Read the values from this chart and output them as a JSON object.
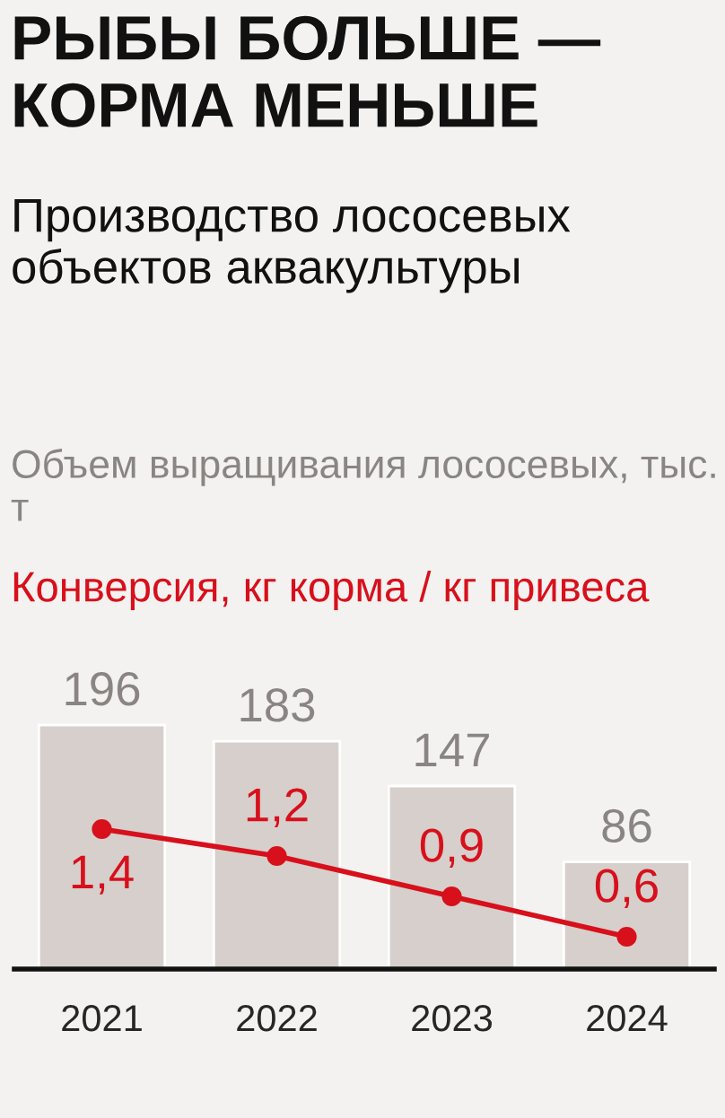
{
  "chart_data": {
    "type": "bar",
    "title": "РЫБЫ БОЛЬШЕ — КОРМА МЕНЬШЕ",
    "subtitle": "Производство лососевых объектов аквакультуры",
    "annotations": [
      "Объем выращивания лососевых, тыс. т"
    ],
    "categories": [
      "2021",
      "2022",
      "2023",
      "2024"
    ],
    "series": [
      {
        "color": "#d6cfcb",
        "values": [
          196,
          183,
          147,
          86
        ]
      },
      {
        "name": "Конверсия, кг корма / кг привеса",
        "type": "line",
        "axis": "y2",
        "color": "#d7101c",
        "values": [
          1.4,
          1.2,
          0.9,
          0.6
        ],
        "value_labels": [
          "1,4",
          "1,2",
          "0,9",
          "0,6"
        ]
      }
    ],
    "tick_labels": "x",
    "data_labels": true,
    "marker": "circle",
    "line_style": "solid",
    "grid": false
  }
}
